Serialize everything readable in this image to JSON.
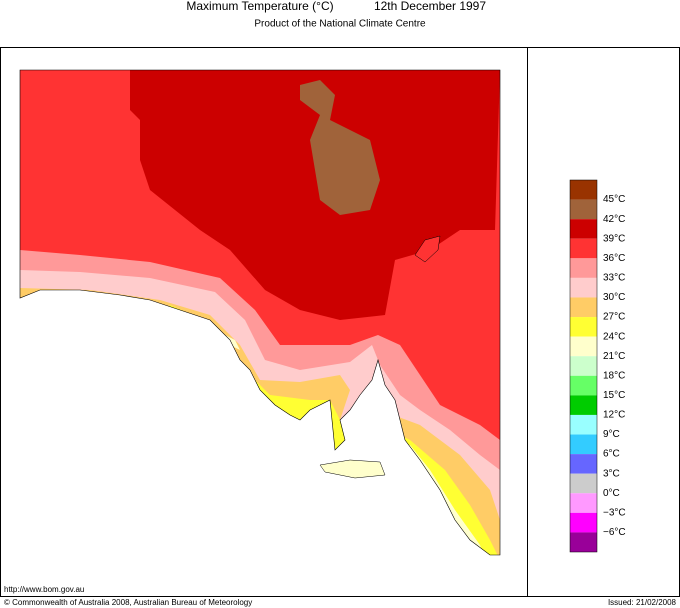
{
  "header": {
    "title": "Maximum Temperature (°C)",
    "date": "12th December 1997",
    "subtitle": "Product of the National Climate Centre"
  },
  "legend": {
    "colors": [
      "#993300",
      "#a0633a",
      "#cc0000",
      "#ff3333",
      "#ff9999",
      "#ffcccc",
      "#ffcc66",
      "#ffff33",
      "#ffffcc",
      "#ccffcc",
      "#66ff66",
      "#00cc00",
      "#99ffff",
      "#33ccff",
      "#6666ff",
      "#cccccc",
      "#ff99ff",
      "#ff00ff",
      "#990099"
    ],
    "labels": [
      "45°C",
      "42°C",
      "39°C",
      "36°C",
      "33°C",
      "30°C",
      "27°C",
      "24°C",
      "21°C",
      "18°C",
      "15°C",
      "12°C",
      "9°C",
      "6°C",
      "3°C",
      "0°C",
      "−3°C",
      "−6°C"
    ]
  },
  "footer": {
    "url": "http://www.bom.gov.au",
    "copyright": "© Commonwealth of Australia 2008, Australian Bureau of Meteorology",
    "issued": "Issued: 21/02/2008"
  }
}
